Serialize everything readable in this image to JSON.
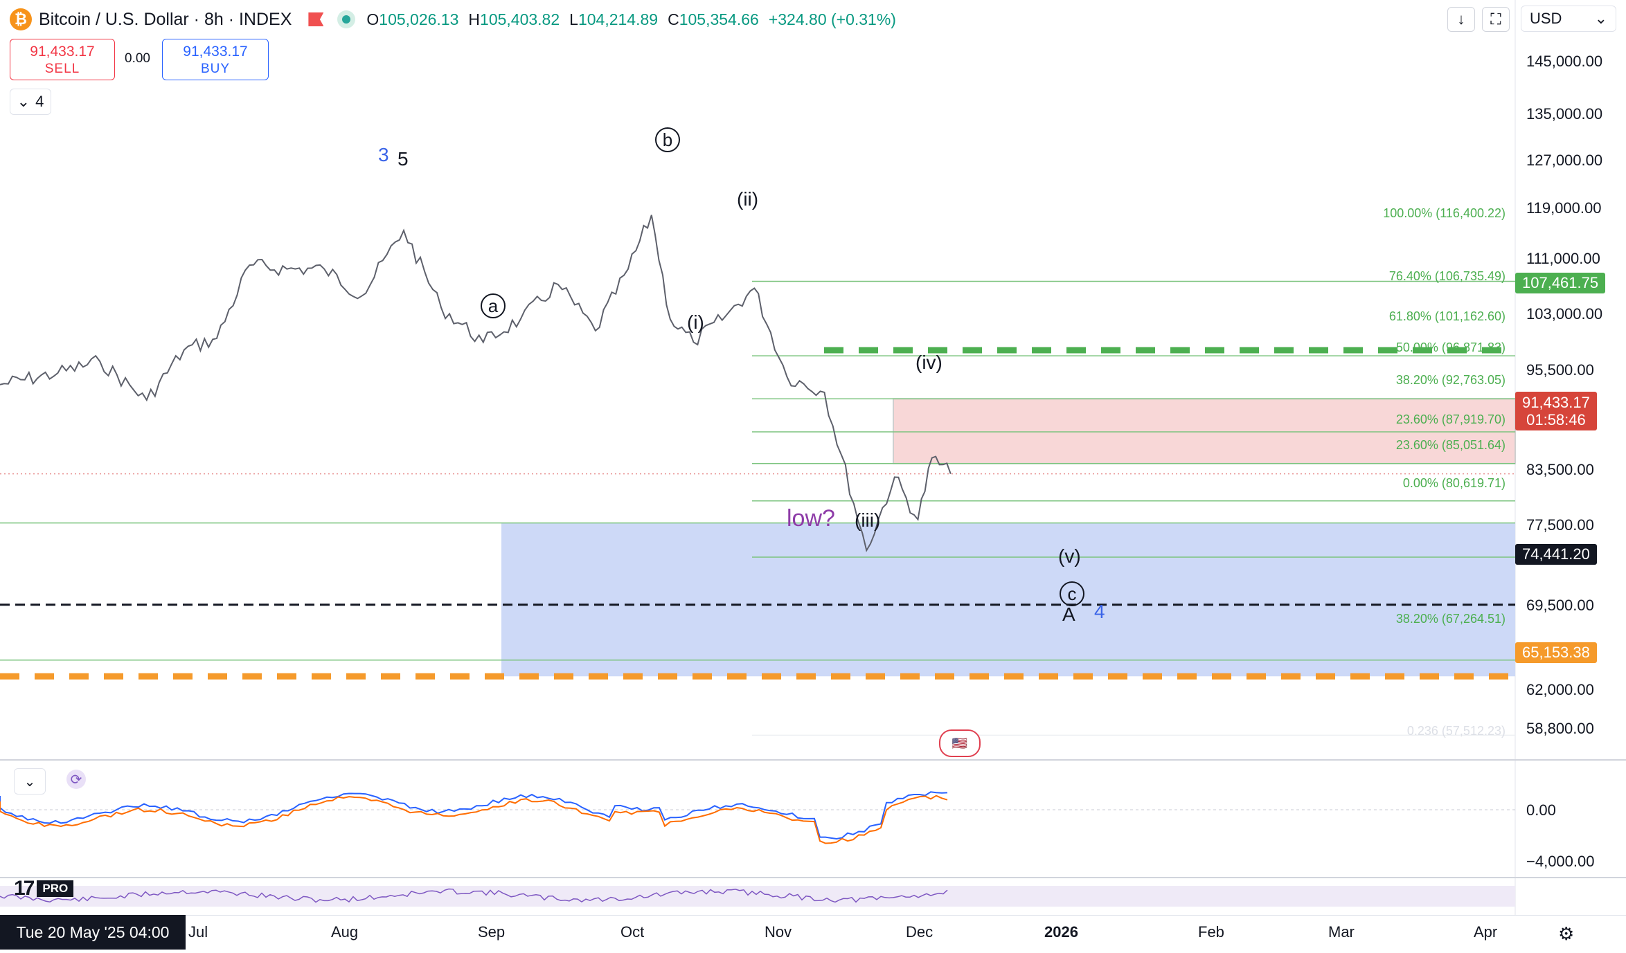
{
  "header": {
    "symbol_icon": "bitcoin-icon",
    "title": "Bitcoin / U.S. Dollar · 8h · INDEX",
    "ohlc": [
      {
        "k": "O",
        "v": "105,026.13"
      },
      {
        "k": "H",
        "v": "105,403.82"
      },
      {
        "k": "L",
        "v": "104,214.89"
      },
      {
        "k": "C",
        "v": "105,354.66"
      }
    ],
    "change": "+324.80 (+0.31%)",
    "change_color": "#089981",
    "currency": "USD"
  },
  "trade": {
    "sell_price": "91,433.17",
    "sell_label": "SELL",
    "spread": "0.00",
    "buy_price": "91,433.17",
    "buy_label": "BUY"
  },
  "indicators_toggle": "4",
  "price_tags": [
    {
      "value": 107461.75,
      "label": "107,461.75",
      "color": "#4caf50"
    },
    {
      "value": 74441.2,
      "label": "74,441.20",
      "color": "#131722"
    },
    {
      "value": 65153.38,
      "label": "65,153.38",
      "color": "#f59a2b"
    }
  ],
  "last_price_tag": {
    "label": "91,433.17",
    "countdown": "01:58:46",
    "color": "#d6453a"
  },
  "datepill": "Tue 20 May '25  04:00",
  "tv_logo": {
    "mark": "17",
    "badge": "PRO"
  },
  "wave_labels": [
    {
      "text": "3",
      "color": "#3a64e8"
    },
    {
      "text": "5",
      "color": "#131722"
    },
    {
      "text": "(ii)",
      "color": "#131722"
    },
    {
      "text": "(i)",
      "color": "#131722"
    },
    {
      "text": "(iv)",
      "color": "#131722"
    },
    {
      "text": "(iii)",
      "color": "#131722"
    },
    {
      "text": "low?",
      "color": "#8e3ca8"
    },
    {
      "text": "(v)",
      "color": "#131722"
    },
    {
      "text": "A",
      "color": "#131722"
    },
    {
      "text": "4",
      "color": "#3a64e8"
    }
  ],
  "circled_labels": [
    "b",
    "a",
    "c"
  ],
  "chart_data": {
    "type": "line",
    "title": "Bitcoin / U.S. Dollar · 8h · INDEX",
    "xlabel": "",
    "ylabel": "",
    "ylim": [
      56800,
      148500
    ],
    "price_axis_labels": [
      "145,000.00",
      "135,000.00",
      "127,000.00",
      "119,000.00",
      "111,000.00",
      "103,000.00",
      "95,500.00",
      "83,500.00",
      "77,500.00",
      "69,500.00",
      "62,000.00",
      "58,800.00"
    ],
    "time_axis_labels": [
      "Jul",
      "Aug",
      "Sep",
      "Oct",
      "Nov",
      "Dec",
      "2026",
      "Feb",
      "Mar",
      "Apr"
    ],
    "grid": true,
    "series": [
      {
        "name": "",
        "x": [
          "2025-06-01",
          "2025-06-10",
          "2025-06-20",
          "2025-06-28",
          "2025-07-05",
          "2025-07-12",
          "2025-07-20",
          "2025-07-28",
          "2025-08-05",
          "2025-08-14",
          "2025-08-22",
          "2025-08-31",
          "2025-09-08",
          "2025-09-16",
          "2025-09-24",
          "2025-10-01",
          "2025-10-06",
          "2025-10-10",
          "2025-10-15",
          "2025-10-22",
          "2025-10-28",
          "2025-11-04",
          "2025-11-12",
          "2025-11-21",
          "2025-11-27",
          "2025-12-02",
          "2025-12-05",
          "2025-12-09"
        ],
        "values": [
          104500,
          106000,
          101000,
          107500,
          109000,
          118500,
          118000,
          118000,
          114500,
          123000,
          113000,
          108500,
          111500,
          116000,
          110000,
          118000,
          125000,
          111500,
          108500,
          112000,
          115500,
          104000,
          102000,
          81500,
          91000,
          85500,
          93500,
          91433
        ]
      }
    ],
    "fib_levels": [
      {
        "label": "100.00% (116,400.22)",
        "value": 116400.22
      },
      {
        "label": "76.40% (106,735.49)",
        "value": 106735.49
      },
      {
        "label": "61.80% (101,162.60)",
        "value": 101162.6
      },
      {
        "label": "50.00% (96,871.83)",
        "value": 96871.83
      },
      {
        "label": "38.20% (92,763.05)",
        "value": 92763.05
      },
      {
        "label": "23.60% (87,919.70)",
        "value": 87919.7
      },
      {
        "label": "23.60% (85,051.64)",
        "value": 85051.64
      },
      {
        "label": "0.00% (80,619.71)",
        "value": 80619.71
      },
      {
        "label": "38.20% (67,264.51)",
        "value": 67264.51
      },
      {
        "label": "0.236 (57,512.23)",
        "value": 57512.23
      }
    ],
    "zones": [
      {
        "name": "resistance",
        "from": 92763.05,
        "to": 101162.6,
        "color": "#f8d7d7"
      },
      {
        "name": "support",
        "from": 65153.38,
        "to": 85051.64,
        "color": "#cdd9f7"
      }
    ],
    "horizontal_lines": [
      {
        "value": 107461.75,
        "style": "dashed",
        "color": "#4caf50"
      },
      {
        "value": 74441.2,
        "style": "dashed",
        "color": "#131722"
      },
      {
        "value": 65153.38,
        "style": "dashed",
        "color": "#f59a2b"
      },
      {
        "value": 91433.17,
        "style": "dotted",
        "color": "#e89090"
      }
    ],
    "macd_panel": {
      "axis_labels": [
        "0.00",
        "−4,000.00"
      ]
    }
  }
}
